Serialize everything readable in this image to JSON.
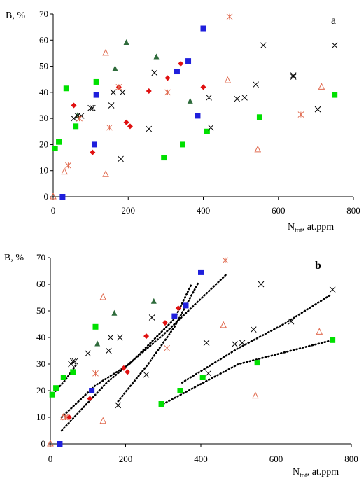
{
  "chart_data": [
    {
      "panel": "a",
      "type": "scatter",
      "ylabel": "B, %",
      "xlabel_main": "N",
      "xlabel_sub": "tot",
      "xlabel_tail": ", at.ppm",
      "xlim": [
        0,
        800
      ],
      "ylim": [
        0,
        70
      ],
      "xticks": [
        0,
        200,
        400,
        600,
        800
      ],
      "yticks": [
        0,
        10,
        20,
        30,
        40,
        50,
        60,
        70
      ],
      "grid": false,
      "legend": "none",
      "series": [
        {
          "marker": "square",
          "color": "#00e000",
          "points": [
            [
              5,
              18.5
            ],
            [
              15,
              21
            ],
            [
              35,
              41.5
            ],
            [
              60,
              27
            ],
            [
              115,
              44
            ],
            [
              295,
              15
            ],
            [
              345,
              20
            ],
            [
              410,
              25
            ],
            [
              550,
              30.5
            ],
            [
              750,
              39
            ]
          ]
        },
        {
          "marker": "square",
          "color": "#1f1fdc",
          "points": [
            [
              25,
              0
            ],
            [
              110,
              20
            ],
            [
              115,
              39
            ],
            [
              330,
              48
            ],
            [
              360,
              52
            ],
            [
              385,
              31
            ],
            [
              400,
              64.5
            ]
          ]
        },
        {
          "marker": "triangle-filled",
          "color": "#2e6b3b",
          "points": [
            [
              65,
              31
            ],
            [
              165,
              49
            ],
            [
              195,
              59
            ],
            [
              275,
              53.5
            ],
            [
              365,
              36.5
            ]
          ]
        },
        {
          "marker": "diamond",
          "color": "#e01010",
          "points": [
            [
              55,
              35
            ],
            [
              105,
              17
            ],
            [
              175,
              42
            ],
            [
              195,
              28.5
            ],
            [
              205,
              27
            ],
            [
              255,
              40.5
            ],
            [
              305,
              45.5
            ],
            [
              340,
              51
            ],
            [
              400,
              42
            ]
          ]
        },
        {
          "marker": "x",
          "color": "#000000",
          "points": [
            [
              55,
              30
            ],
            [
              65,
              31
            ],
            [
              75,
              31
            ],
            [
              100,
              34
            ],
            [
              105,
              34
            ],
            [
              155,
              35
            ],
            [
              160,
              40
            ],
            [
              180,
              14.5
            ],
            [
              185,
              40
            ],
            [
              255,
              26
            ],
            [
              270,
              47.5
            ],
            [
              415,
              38
            ],
            [
              420,
              26.5
            ],
            [
              490,
              37.5
            ],
            [
              510,
              38
            ],
            [
              540,
              43
            ],
            [
              560,
              58
            ],
            [
              640,
              46
            ],
            [
              640,
              46.5
            ],
            [
              705,
              33.5
            ],
            [
              750,
              58
            ]
          ]
        },
        {
          "marker": "asterisk",
          "color": "#e06b50",
          "points": [
            [
              40,
              12
            ],
            [
              70,
              30
            ],
            [
              150,
              26.5
            ],
            [
              175,
              42
            ],
            [
              305,
              40
            ],
            [
              470,
              69
            ],
            [
              660,
              31.5
            ]
          ]
        },
        {
          "marker": "triangle-open",
          "color": "#e06b50",
          "points": [
            [
              0,
              0
            ],
            [
              30,
              9.5
            ],
            [
              140,
              55
            ],
            [
              140,
              8.5
            ],
            [
              465,
              44.5
            ],
            [
              545,
              18
            ],
            [
              715,
              42
            ]
          ]
        }
      ],
      "trend_lines": []
    },
    {
      "panel": "b",
      "type": "scatter",
      "ylabel": "B, %",
      "xlabel_main": "N",
      "xlabel_sub": "tot",
      "xlabel_tail": ", at.ppm",
      "xlim": [
        0,
        800
      ],
      "ylim": [
        0,
        70
      ],
      "xticks": [
        0,
        200,
        400,
        600,
        800
      ],
      "yticks": [
        0,
        10,
        20,
        30,
        40,
        50,
        60,
        70
      ],
      "grid": false,
      "legend": "none",
      "series": [
        {
          "marker": "square",
          "color": "#00e000",
          "points": [
            [
              5,
              18.5
            ],
            [
              15,
              21
            ],
            [
              35,
              25
            ],
            [
              60,
              27
            ],
            [
              120,
              44
            ],
            [
              295,
              15
            ],
            [
              345,
              20
            ],
            [
              405,
              25
            ],
            [
              550,
              30.5
            ],
            [
              750,
              39
            ]
          ]
        },
        {
          "marker": "square",
          "color": "#1f1fdc",
          "points": [
            [
              25,
              0
            ],
            [
              110,
              20
            ],
            [
              330,
              48
            ],
            [
              360,
              52
            ],
            [
              400,
              64.5
            ]
          ]
        },
        {
          "marker": "triangle-filled",
          "color": "#2e6b3b",
          "points": [
            [
              125,
              37.5
            ],
            [
              170,
              49
            ],
            [
              275,
              53.5
            ]
          ]
        },
        {
          "marker": "diamond",
          "color": "#e01010",
          "points": [
            [
              50,
              10
            ],
            [
              105,
              17
            ],
            [
              195,
              28.5
            ],
            [
              205,
              27
            ],
            [
              255,
              40.5
            ],
            [
              305,
              45.5
            ],
            [
              340,
              51
            ]
          ]
        },
        {
          "marker": "x",
          "color": "#000000",
          "points": [
            [
              55,
              30
            ],
            [
              60,
              31
            ],
            [
              65,
              31
            ],
            [
              100,
              34
            ],
            [
              155,
              35
            ],
            [
              160,
              40
            ],
            [
              180,
              14.5
            ],
            [
              185,
              40
            ],
            [
              255,
              26
            ],
            [
              270,
              47.5
            ],
            [
              415,
              38
            ],
            [
              420,
              26.5
            ],
            [
              490,
              37.5
            ],
            [
              510,
              38
            ],
            [
              540,
              43
            ],
            [
              560,
              60
            ],
            [
              640,
              46
            ],
            [
              750,
              58
            ]
          ]
        },
        {
          "marker": "asterisk",
          "color": "#e06b50",
          "points": [
            [
              40,
              10
            ],
            [
              120,
              26.5
            ],
            [
              310,
              36
            ],
            [
              465,
              69
            ]
          ]
        },
        {
          "marker": "triangle-open",
          "color": "#e06b50",
          "points": [
            [
              0,
              0
            ],
            [
              35,
              10
            ],
            [
              140,
              55
            ],
            [
              140,
              8.5
            ],
            [
              460,
              44.5
            ],
            [
              545,
              18
            ],
            [
              715,
              42
            ]
          ]
        }
      ],
      "trend_lines": [
        {
          "points": [
            [
              2,
              18
            ],
            [
              40,
              24
            ],
            [
              70,
              30
            ]
          ]
        },
        {
          "points": [
            [
              30,
              10
            ],
            [
              120,
              22
            ],
            [
              210,
              30
            ],
            [
              330,
              47
            ],
            [
              375,
              60
            ]
          ]
        },
        {
          "points": [
            [
              30,
              5
            ],
            [
              150,
              23
            ],
            [
              300,
              41
            ],
            [
              470,
              64
            ]
          ]
        },
        {
          "points": [
            [
              180,
              16
            ],
            [
              260,
              30
            ],
            [
              330,
              44
            ],
            [
              395,
              61
            ]
          ]
        },
        {
          "points": [
            [
              300,
              15
            ],
            [
              500,
              30
            ],
            [
              750,
              39
            ]
          ]
        },
        {
          "points": [
            [
              350,
              23
            ],
            [
              500,
              36
            ],
            [
              620,
              45
            ],
            [
              745,
              56
            ]
          ]
        }
      ]
    }
  ]
}
